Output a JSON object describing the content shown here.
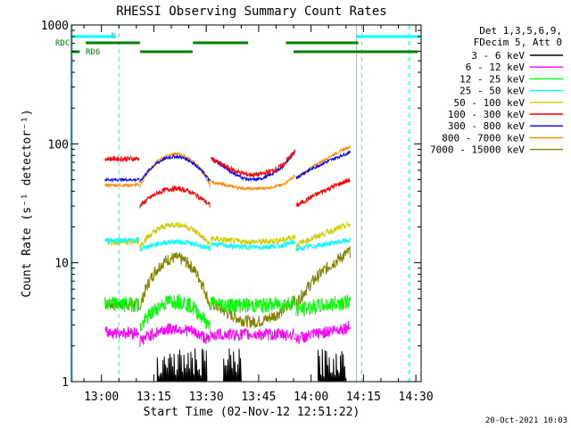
{
  "chart_data": {
    "type": "line",
    "title": "RHESSI Observing Summary Count Rates",
    "xlabel": "Start Time (02-Nov-12 12:51:22)",
    "ylabel": "Count Rate (s⁻¹ detector⁻¹)",
    "y_scale": "log",
    "ylim": [
      1,
      1000
    ],
    "xlim_minutes_after_1300": [
      -8.6,
      91.5
    ],
    "x_ticks": [
      {
        "t": 0,
        "label": "13:00"
      },
      {
        "t": 15,
        "label": "13:15"
      },
      {
        "t": 30,
        "label": "13:30"
      },
      {
        "t": 45,
        "label": "13:45"
      },
      {
        "t": 60,
        "label": "14:00"
      },
      {
        "t": 75,
        "label": "14:15"
      },
      {
        "t": 90,
        "label": "14:30"
      }
    ],
    "y_ticks": [
      {
        "v": 1,
        "label": "1"
      },
      {
        "v": 10,
        "label": "10"
      },
      {
        "v": 100,
        "label": "100"
      },
      {
        "v": 1000,
        "label": "1000"
      }
    ],
    "legend_header": [
      "Det 1,3,5,6,9,",
      "FDecim 5, Att 0"
    ],
    "legend_position": "right",
    "flag_labels": {
      "rdc": "RDC",
      "rd6": "RD6",
      "n": "N"
    },
    "footer_timestamp": "20-Oct-2021 10:03",
    "series": [
      {
        "name": "3 - 6 keV",
        "color": "#000000"
      },
      {
        "name": "6 - 12 keV",
        "color": "#ff00ff"
      },
      {
        "name": "12 - 25 keV",
        "color": "#00ff00"
      },
      {
        "name": "25 - 50 keV",
        "color": "#00ffff"
      },
      {
        "name": "50 - 100 keV",
        "color": "#cccc00"
      },
      {
        "name": "100 - 300 keV",
        "color": "#ff0000"
      },
      {
        "name": "300 - 800 keV",
        "color": "#0000ff"
      },
      {
        "name": "800 - 7000 keV",
        "color": "#ff8c00"
      },
      {
        "name": "7000 - 15000 keV",
        "color": "#808000"
      }
    ],
    "approx_levels": {
      "700 - 15000 keV / 800 - 7000 keV": "about 40-90",
      "300 - 800 keV": "about 48-88",
      "100 - 300 keV": "about 28-100",
      "50 - 100 keV": "about 15-22",
      "25 - 50 keV": "about 13-17",
      "7000 - 15000 keV": "about 3-12",
      "12 - 25 keV": "about 2-5",
      "6 - 12 keV": "about 2-3",
      "3 - 6 keV": "below 2"
    }
  }
}
